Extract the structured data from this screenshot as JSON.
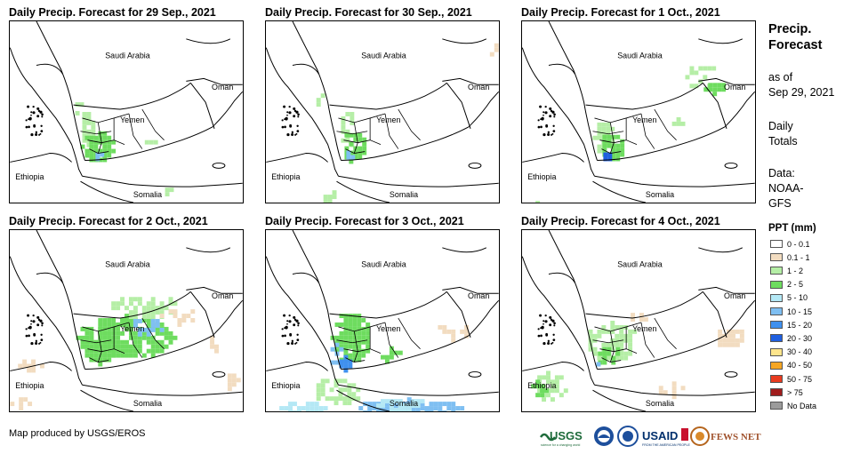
{
  "panels": [
    {
      "title": "Daily Precip. Forecast for 29 Sep., 2021"
    },
    {
      "title": "Daily Precip. Forecast for 30 Sep., 2021"
    },
    {
      "title": "Daily Precip. Forecast for 1 Oct., 2021"
    },
    {
      "title": "Daily Precip. Forecast for 2 Oct., 2021"
    },
    {
      "title": "Daily Precip. Forecast for 3 Oct., 2021"
    },
    {
      "title": "Daily Precip. Forecast for 4 Oct., 2021"
    }
  ],
  "map_labels": {
    "saudi": "Saudi Arabia",
    "oman": "Oman",
    "yemen": "Yemen",
    "ethiopia": "Ethiopia",
    "somalia": "Somalia"
  },
  "sidebar": {
    "title_line1": "Precip.",
    "title_line2": "Forecast",
    "asof_line1": "as of",
    "asof_line2": "Sep 29, 2021",
    "daily_line1": "Daily",
    "daily_line2": "Totals",
    "data_line1": "Data:",
    "data_line2": "NOAA-",
    "data_line3": "GFS"
  },
  "legend": {
    "title": "PPT (mm)",
    "items": [
      {
        "label": "0 - 0.1",
        "color": "#ffffff"
      },
      {
        "label": "0.1 - 1",
        "color": "#f2dcc0"
      },
      {
        "label": "1 - 2",
        "color": "#b5eea6"
      },
      {
        "label": "2 - 5",
        "color": "#6edc5f"
      },
      {
        "label": "5 - 10",
        "color": "#b4e8f5"
      },
      {
        "label": "10 - 15",
        "color": "#7fbff2"
      },
      {
        "label": "15 - 20",
        "color": "#3f90ee"
      },
      {
        "label": "20 - 30",
        "color": "#1f5fe0"
      },
      {
        "label": "30 - 40",
        "color": "#fde58c"
      },
      {
        "label": "40 - 50",
        "color": "#f5a623"
      },
      {
        "label": "50 - 75",
        "color": "#e83b1f"
      },
      {
        "label": "> 75",
        "color": "#a01d1d"
      },
      {
        "label": "No Data",
        "color": "#9b9b9b"
      }
    ]
  },
  "credit": "Map produced by USGS/EROS",
  "logos": {
    "usgs": "USGS",
    "usgs_tagline": "science for a changing world",
    "usaid": "USAID",
    "usaid_tagline": "FROM THE AMERICAN PEOPLE",
    "fews": "FEWS NET"
  }
}
